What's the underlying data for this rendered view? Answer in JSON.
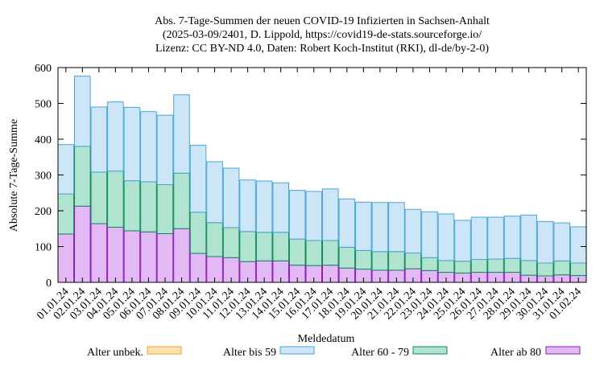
{
  "chart_data": {
    "type": "bar",
    "stacked": true,
    "title_lines": [
      "Abs. 7-Tage-Summen der neuen COVID-19 Infizierten in Sachsen-Anhalt",
      "(2025-03-09/2401, D. Lippold, https://covid19-de-stats.sourceforge.io/",
      "Lizenz: CC BY-ND 4.0, Daten: Robert Koch-Institut (RKI), dl-de/by-2-0)"
    ],
    "xlabel": "Meldedatum",
    "ylabel": "Absolute 7-Tage-Summe",
    "ylim": [
      0,
      600
    ],
    "yticks": [
      "0",
      "100",
      "200",
      "300",
      "400",
      "500",
      "600"
    ],
    "grid": false,
    "legend_position": "bottom",
    "categories": [
      "01.01.24",
      "02.01.24",
      "03.01.24",
      "04.01.24",
      "05.01.24",
      "06.01.24",
      "07.01.24",
      "08.01.24",
      "09.01.24",
      "10.01.24",
      "11.01.24",
      "12.01.24",
      "13.01.24",
      "14.01.24",
      "15.01.24",
      "16.01.24",
      "17.01.24",
      "18.01.24",
      "19.01.24",
      "20.01.24",
      "21.01.24",
      "22.01.24",
      "23.01.24",
      "24.01.24",
      "25.01.24",
      "26.01.24",
      "27.01.24",
      "28.01.24",
      "29.01.24",
      "30.01.24",
      "31.01.24",
      "01.02.24"
    ],
    "series": [
      {
        "name": "Alter ab 80",
        "fill": "#e2b8f5",
        "stroke": "#8a1ab8",
        "values": [
          135,
          213,
          164,
          154,
          144,
          141,
          136,
          150,
          81,
          72,
          69,
          58,
          60,
          60,
          48,
          47,
          48,
          40,
          37,
          34,
          34,
          38,
          33,
          28,
          26,
          28,
          28,
          28,
          20,
          18,
          21,
          19
        ]
      },
      {
        "name": "Alter 60 - 79",
        "fill": "#b1e4d0",
        "stroke": "#0f8a5a",
        "values": [
          112,
          167,
          144,
          157,
          140,
          140,
          137,
          155,
          115,
          95,
          84,
          84,
          80,
          80,
          73,
          70,
          69,
          58,
          52,
          52,
          52,
          44,
          36,
          33,
          33,
          36,
          37,
          39,
          41,
          36,
          39,
          35
        ]
      },
      {
        "name": "Alter bis 59",
        "fill": "#cce6f8",
        "stroke": "#4ba5d6",
        "values": [
          138,
          196,
          182,
          193,
          205,
          196,
          194,
          219,
          187,
          170,
          166,
          144,
          143,
          138,
          136,
          137,
          144,
          135,
          135,
          137,
          137,
          122,
          128,
          130,
          114,
          118,
          117,
          118,
          127,
          116,
          106,
          101
        ]
      },
      {
        "name": "Alter unbek.",
        "fill": "#fde2b0",
        "stroke": "#e8a11c",
        "values": [
          0,
          0,
          0,
          0,
          0,
          0,
          0,
          0,
          0,
          0,
          0,
          0,
          0,
          0,
          0,
          0,
          0,
          0,
          0,
          0,
          0,
          0,
          0,
          0,
          0,
          0,
          0,
          0,
          0,
          0,
          0,
          0
        ]
      }
    ],
    "legend_order": [
      "Alter unbek.",
      "Alter bis 59",
      "Alter 60 - 79",
      "Alter ab 80"
    ]
  }
}
